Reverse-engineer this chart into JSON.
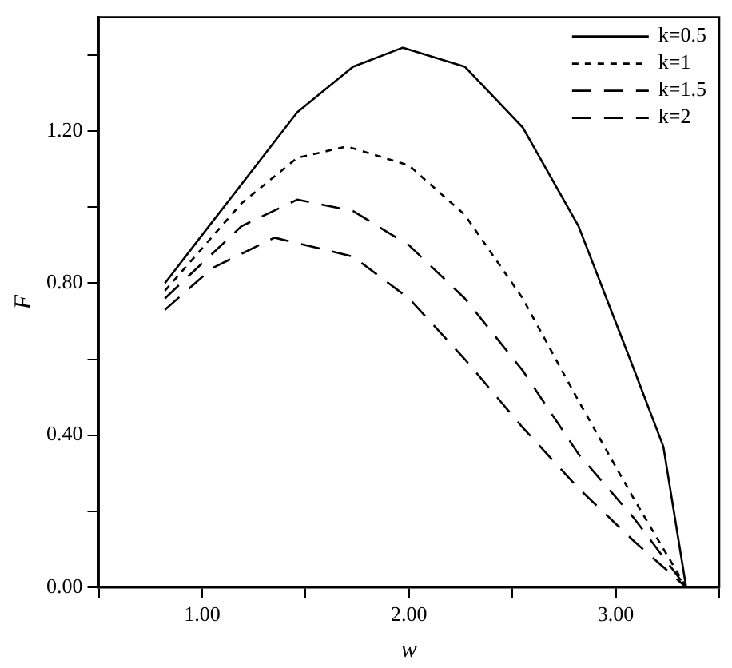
{
  "chart_data": {
    "type": "line",
    "xlabel": "w",
    "ylabel": "F",
    "xlim": [
      0.5,
      3.5
    ],
    "ylim": [
      0,
      1.5
    ],
    "xticks": [
      {
        "value": 0.5,
        "label": null
      },
      {
        "value": 1,
        "label": "1.00"
      },
      {
        "value": 1.5,
        "label": null
      },
      {
        "value": 2,
        "label": "2.00"
      },
      {
        "value": 2.5,
        "label": null
      },
      {
        "value": 3,
        "label": "3.00"
      },
      {
        "value": 3.5,
        "label": null
      }
    ],
    "yticks": [
      {
        "value": 0,
        "label": "0.00"
      },
      {
        "value": 0.2,
        "label": null
      },
      {
        "value": 0.4,
        "label": "0.40"
      },
      {
        "value": 0.6,
        "label": null
      },
      {
        "value": 0.8,
        "label": "0.80"
      },
      {
        "value": 1,
        "label": null
      },
      {
        "value": 1.2,
        "label": "1.20"
      },
      {
        "value": 1.4,
        "label": null
      }
    ],
    "legend": "top right",
    "grid": false,
    "marker": "none",
    "series": [
      {
        "name": "k=0.5",
        "color": "#000000",
        "line_style": "solid",
        "x": [
          0.82,
          0.99,
          1.19,
          1.46,
          1.73,
          1.97,
          2.27,
          2.55,
          2.82,
          3.09,
          3.23,
          3.34
        ],
        "values": [
          0.8,
          0.92,
          1.06,
          1.25,
          1.37,
          1.42,
          1.37,
          1.21,
          0.95,
          0.57,
          0.37,
          0
        ]
      },
      {
        "name": "k=1",
        "color": "#000000",
        "line_style": "dotted",
        "x": [
          0.82,
          1.19,
          1.46,
          1.7,
          2.0,
          2.27,
          2.55,
          2.82,
          3.09,
          3.34
        ],
        "values": [
          0.78,
          1.01,
          1.13,
          1.16,
          1.11,
          0.98,
          0.76,
          0.49,
          0.23,
          0
        ]
      },
      {
        "name": "k=1.5",
        "color": "#000000",
        "line_style": "dashed",
        "x": [
          0.82,
          1.19,
          1.46,
          1.73,
          2.0,
          2.27,
          2.55,
          2.82,
          3.09,
          3.34
        ],
        "values": [
          0.76,
          0.95,
          1.02,
          0.99,
          0.9,
          0.76,
          0.57,
          0.35,
          0.18,
          0
        ]
      },
      {
        "name": "k=2",
        "color": "#000000",
        "line_style": "dashed",
        "x": [
          0.82,
          1.05,
          1.35,
          1.73,
          2.0,
          2.27,
          2.55,
          2.82,
          3.09,
          3.34
        ],
        "values": [
          0.73,
          0.84,
          0.92,
          0.87,
          0.76,
          0.6,
          0.42,
          0.26,
          0.12,
          0
        ]
      }
    ]
  }
}
